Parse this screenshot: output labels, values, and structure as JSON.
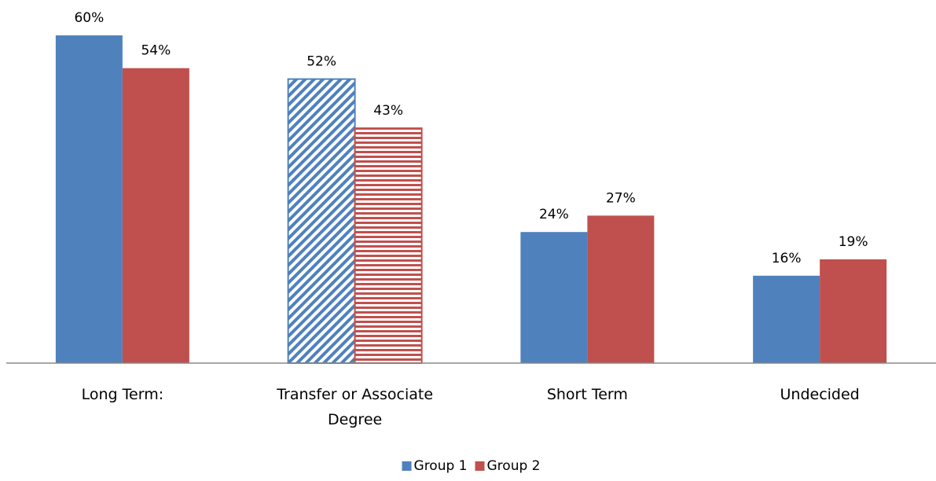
{
  "chart_data": {
    "type": "bar",
    "categories": [
      "Long Term:",
      "Transfer or Associate Degree",
      "Short Term",
      "Undecided"
    ],
    "series": [
      {
        "name": "Group 1",
        "color": "#4f81bd",
        "values": [
          60,
          52,
          24,
          16
        ],
        "value_labels": [
          "60%",
          "52%",
          "24%",
          "16%"
        ],
        "patterns": [
          "solid",
          "diagonal",
          "solid",
          "solid"
        ]
      },
      {
        "name": "Group 2",
        "color": "#c0504d",
        "values": [
          54,
          43,
          27,
          19
        ],
        "value_labels": [
          "54%",
          "43%",
          "27%",
          "19%"
        ],
        "patterns": [
          "solid",
          "horizontal",
          "solid",
          "solid"
        ]
      }
    ],
    "ylim": [
      0,
      60
    ],
    "grid": false,
    "legend": "bottom"
  }
}
